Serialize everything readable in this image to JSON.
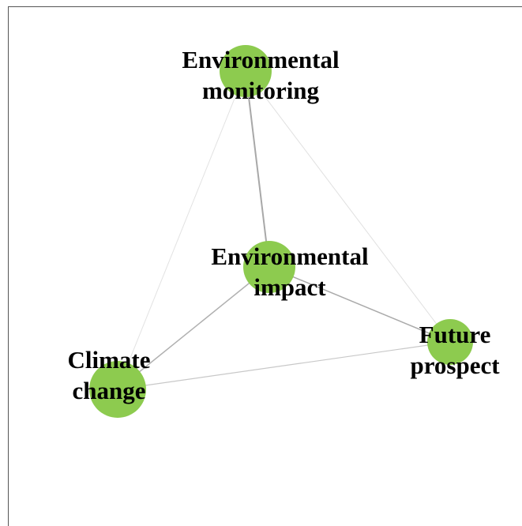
{
  "nodes": [
    {
      "label": [
        "Environmental",
        "monitoring"
      ]
    },
    {
      "label": [
        "Environmental",
        "impact"
      ]
    },
    {
      "label": [
        "Climate",
        "change"
      ]
    },
    {
      "label": [
        "Future",
        "prospect"
      ]
    }
  ]
}
